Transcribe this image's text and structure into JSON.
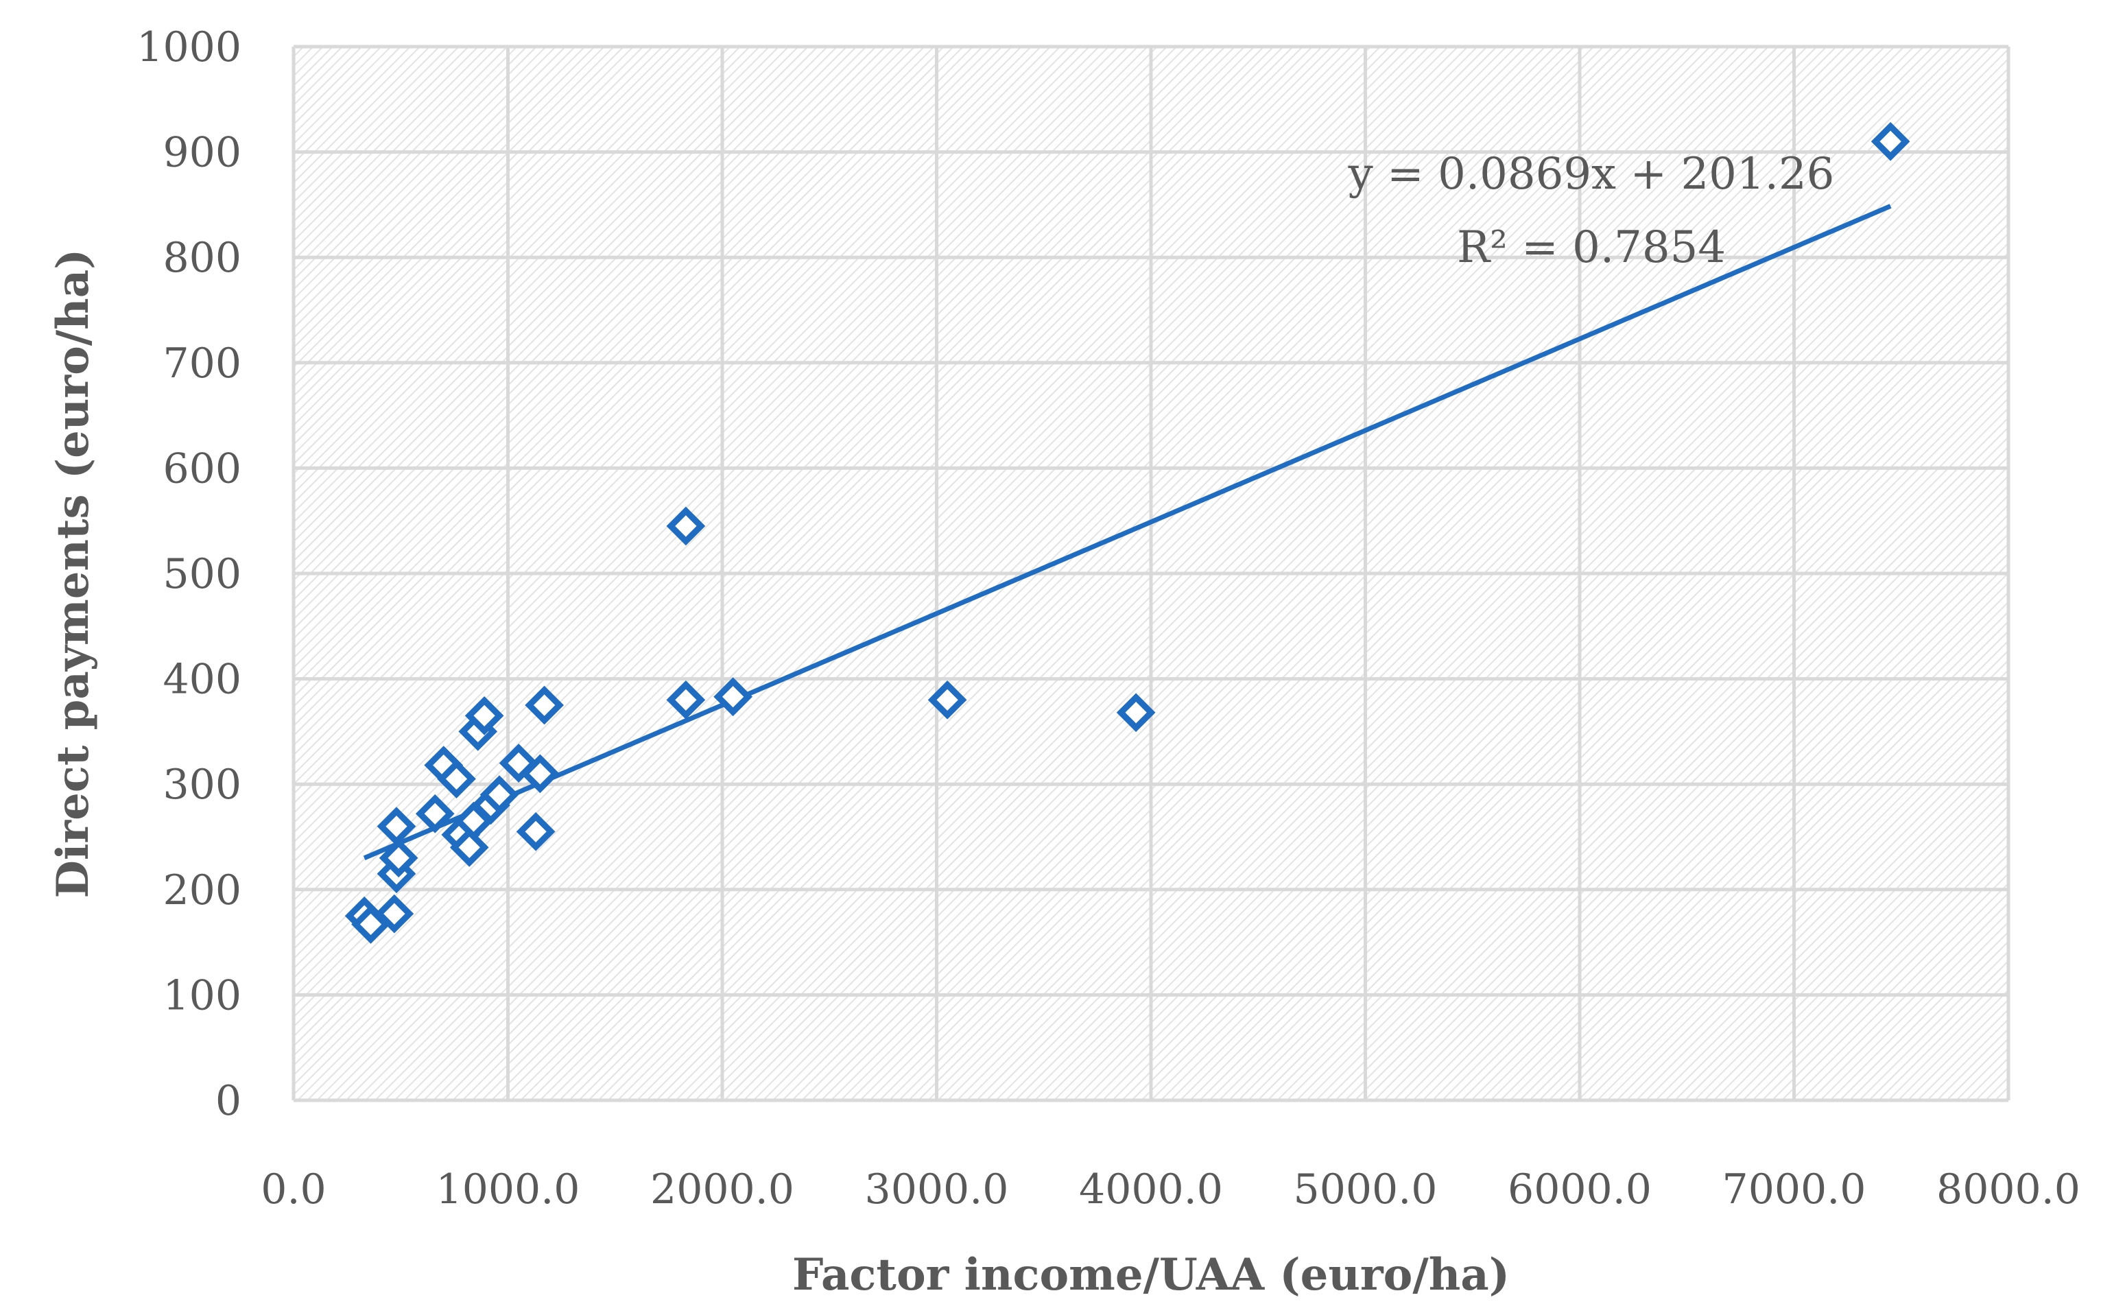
{
  "chart_data": {
    "type": "scatter",
    "xlabel": "Factor income/UAA (euro/ha)",
    "ylabel": "Direct payments (euro/ha)",
    "xlim": [
      0,
      8000
    ],
    "ylim": [
      0,
      1000
    ],
    "x_ticks": [
      "0.0",
      "1000.0",
      "2000.0",
      "3000.0",
      "4000.0",
      "5000.0",
      "6000.0",
      "7000.0",
      "8000.0"
    ],
    "y_ticks": [
      "0",
      "100",
      "200",
      "300",
      "400",
      "500",
      "600",
      "700",
      "800",
      "900",
      "1000"
    ],
    "grid": true,
    "series": [
      {
        "name": "Direct payments",
        "marker": "diamond",
        "color": "#1f6cc1",
        "points": [
          [
            330,
            175
          ],
          [
            360,
            167
          ],
          [
            470,
            177
          ],
          [
            480,
            215
          ],
          [
            490,
            230
          ],
          [
            480,
            260
          ],
          [
            660,
            272
          ],
          [
            700,
            318
          ],
          [
            760,
            305
          ],
          [
            780,
            252
          ],
          [
            820,
            240
          ],
          [
            840,
            265
          ],
          [
            860,
            350
          ],
          [
            890,
            365
          ],
          [
            920,
            280
          ],
          [
            960,
            290
          ],
          [
            1050,
            320
          ],
          [
            1130,
            255
          ],
          [
            1150,
            310
          ],
          [
            1170,
            375
          ],
          [
            1830,
            545
          ],
          [
            1830,
            380
          ],
          [
            2050,
            383
          ],
          [
            3050,
            380
          ],
          [
            3930,
            368
          ],
          [
            7450,
            910
          ]
        ]
      }
    ],
    "trendline": {
      "type": "linear",
      "slope": 0.0869,
      "intercept": 201.26,
      "x_range": [
        330,
        7450
      ],
      "color": "#1f6cc1",
      "equation": "y = 0.0869x + 201.26",
      "r_squared": "R² = 0.7854"
    }
  }
}
